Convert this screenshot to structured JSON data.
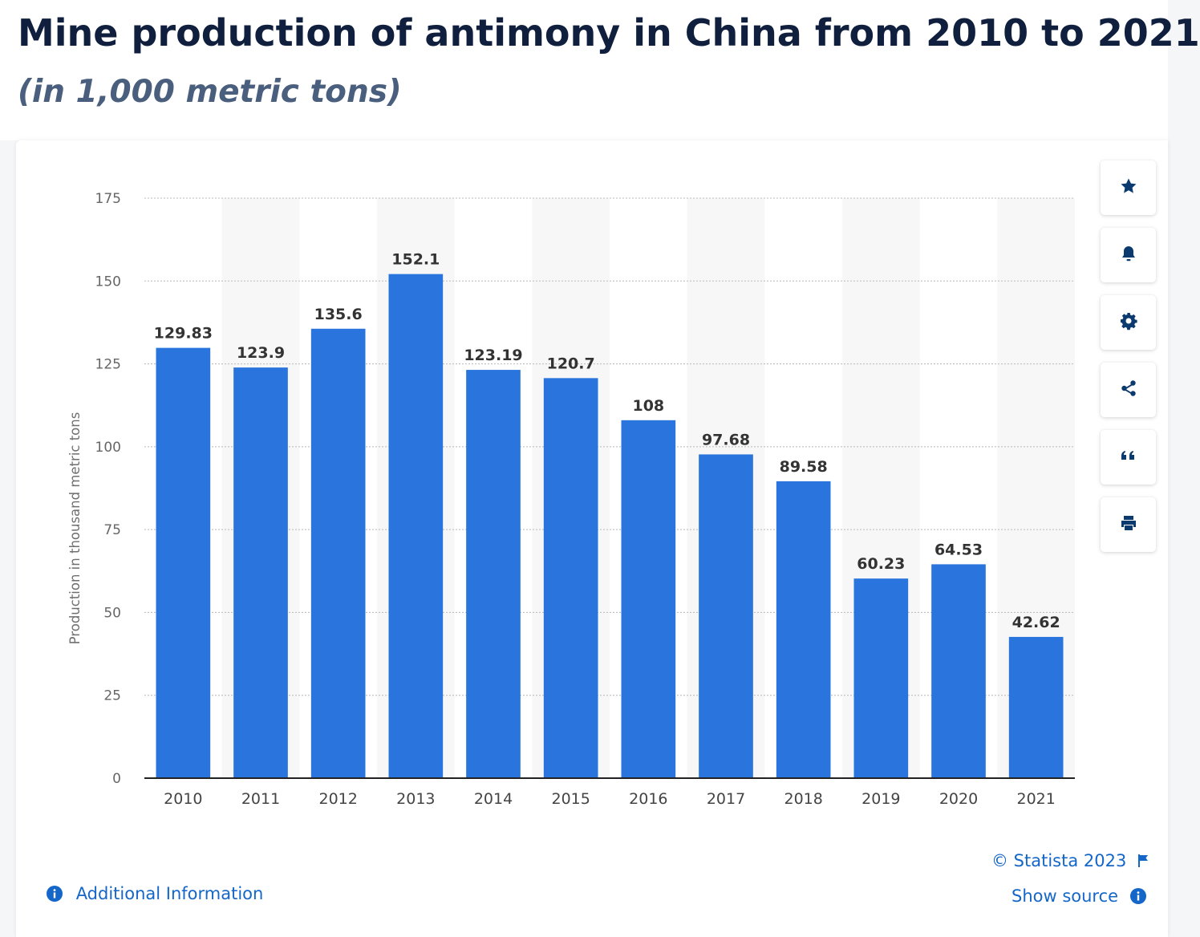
{
  "header": {
    "title": "Mine production of antimony in China from 2010 to 2021",
    "subtitle": "(in 1,000 metric tons)"
  },
  "chart_data": {
    "type": "bar",
    "categories": [
      "2010",
      "2011",
      "2012",
      "2013",
      "2014",
      "2015",
      "2016",
      "2017",
      "2018",
      "2019",
      "2020",
      "2021"
    ],
    "values": [
      129.83,
      123.9,
      135.6,
      152.1,
      123.19,
      120.7,
      108,
      97.68,
      89.58,
      60.23,
      64.53,
      42.62
    ],
    "value_labels": [
      "129.83",
      "123.9",
      "135.6",
      "152.1",
      "123.19",
      "120.7",
      "108",
      "97.68",
      "89.58",
      "60.23",
      "64.53",
      "42.62"
    ],
    "ylabel": "Production in thousand metric tons",
    "xlabel": "",
    "ylim": [
      0,
      175
    ],
    "yticks": [
      "0",
      "25",
      "50",
      "75",
      "100",
      "125",
      "150",
      "175"
    ],
    "grid": true,
    "alternating_column_bands": true,
    "bar_color": "#2a75dd"
  },
  "toolbar": {
    "icons": [
      "star-icon",
      "bell-icon",
      "gear-icon",
      "share-icon",
      "quote-icon",
      "print-icon"
    ]
  },
  "footer": {
    "copyright": "© Statista 2023",
    "show_source": "Show source",
    "additional_info": "Additional Information",
    "link_color": "#1466c8"
  }
}
